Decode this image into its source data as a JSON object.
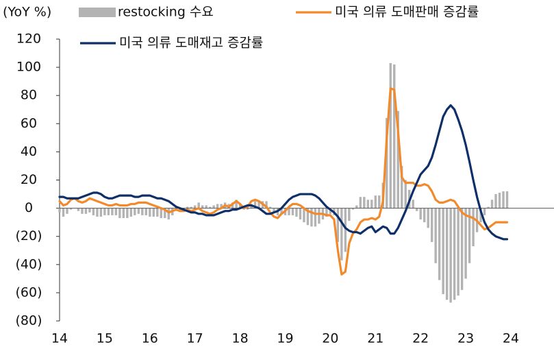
{
  "chart_data": {
    "type": "bar",
    "unit_label": "(YoY %)",
    "categories": [
      "14",
      null,
      null,
      null,
      null,
      null,
      null,
      null,
      null,
      null,
      null,
      null,
      "15",
      null,
      null,
      null,
      null,
      null,
      null,
      null,
      null,
      null,
      null,
      null,
      "16",
      null,
      null,
      null,
      null,
      null,
      null,
      null,
      null,
      null,
      null,
      null,
      "17",
      null,
      null,
      null,
      null,
      null,
      null,
      null,
      null,
      null,
      null,
      null,
      "18",
      null,
      null,
      null,
      null,
      null,
      null,
      null,
      null,
      null,
      null,
      null,
      "19",
      null,
      null,
      null,
      null,
      null,
      null,
      null,
      null,
      null,
      null,
      null,
      "20",
      null,
      null,
      null,
      null,
      null,
      null,
      null,
      null,
      null,
      null,
      null,
      "21",
      null,
      null,
      null,
      null,
      null,
      null,
      null,
      null,
      null,
      null,
      null,
      "22",
      null,
      null,
      null,
      null,
      null,
      null,
      null,
      null,
      null,
      null,
      null,
      "23",
      null,
      null,
      null,
      null,
      null,
      null,
      null,
      null,
      null,
      null,
      null,
      "24"
    ],
    "series": [
      {
        "name": "restocking 수요",
        "type": "bar",
        "color": "#b3b3b3",
        "values": [
          -3,
          -6,
          -4,
          -1,
          0,
          -2,
          -4,
          -4,
          -3,
          -5,
          -6,
          -6,
          -5,
          -5,
          -5,
          -5,
          -7,
          -7,
          -7,
          -6,
          -5,
          -4,
          -5,
          -5,
          -6,
          -6,
          -6,
          -7,
          -7,
          -8,
          -5,
          -2,
          -2,
          -1,
          1,
          1,
          2,
          4,
          2,
          2,
          1,
          2,
          3,
          3,
          4,
          3,
          4,
          6,
          3,
          -1,
          -1,
          3,
          5,
          5,
          5,
          5,
          1,
          -3,
          -5,
          -4,
          -5,
          -5,
          -5,
          -6,
          -8,
          -10,
          -12,
          -13,
          -13,
          -11,
          -8,
          -6,
          -4,
          -5,
          -24,
          -37,
          -31,
          -9,
          -1,
          2,
          8,
          8,
          6,
          6,
          9,
          9,
          18,
          64,
          103,
          102,
          69,
          30,
          20,
          13,
          6,
          -2,
          -8,
          -10,
          -14,
          -24,
          -39,
          -51,
          -61,
          -65,
          -67,
          -65,
          -62,
          -58,
          -50,
          -39,
          -27,
          -17,
          -10,
          -5,
          1,
          6,
          10,
          11,
          12,
          12,
          null
        ]
      },
      {
        "name": "미국 의류 도매판매 증감률",
        "type": "line",
        "color": "#f28a2c",
        "values": [
          5,
          2,
          3,
          6,
          7,
          5,
          4,
          5,
          7,
          6,
          5,
          4,
          3,
          2,
          2,
          3,
          2,
          2,
          2,
          3,
          3,
          4,
          4,
          4,
          3,
          2,
          1,
          0,
          -1,
          -3,
          -2,
          -1,
          -2,
          -2,
          -1,
          -2,
          -1,
          0,
          -2,
          -3,
          -4,
          -3,
          -1,
          0,
          2,
          1,
          3,
          5,
          3,
          0,
          1,
          5,
          6,
          5,
          3,
          1,
          -3,
          -6,
          -7,
          -4,
          -2,
          1,
          3,
          3,
          2,
          0,
          -2,
          -3,
          -4,
          -4,
          -4,
          -5,
          -5,
          -8,
          -30,
          -47,
          -45,
          -25,
          -18,
          -15,
          -10,
          -8,
          -8,
          -7,
          -8,
          -6,
          5,
          50,
          85,
          84,
          55,
          22,
          18,
          18,
          18,
          16,
          16,
          17,
          16,
          12,
          6,
          4,
          4,
          5,
          6,
          5,
          1,
          -3,
          -5,
          -6,
          -7,
          -9,
          -12,
          -15,
          -14,
          -12,
          -10,
          -10,
          -10,
          -10,
          null
        ]
      },
      {
        "name": "미국 의류 도매재고 증감률",
        "type": "line",
        "color": "#0e2f68",
        "values": [
          8,
          8,
          7,
          7,
          7,
          7,
          8,
          9,
          10,
          11,
          11,
          10,
          8,
          7,
          7,
          8,
          9,
          9,
          9,
          9,
          8,
          8,
          9,
          9,
          9,
          8,
          7,
          7,
          6,
          5,
          3,
          1,
          0,
          -1,
          -2,
          -3,
          -3,
          -4,
          -4,
          -5,
          -5,
          -5,
          -4,
          -3,
          -2,
          -2,
          -1,
          -1,
          0,
          1,
          2,
          2,
          1,
          0,
          -2,
          -4,
          -4,
          -3,
          -2,
          0,
          3,
          6,
          8,
          9,
          10,
          10,
          10,
          10,
          9,
          7,
          4,
          1,
          -1,
          -3,
          -6,
          -10,
          -14,
          -16,
          -17,
          -17,
          -18,
          -16,
          -14,
          -13,
          -17,
          -15,
          -13,
          -14,
          -18,
          -18,
          -14,
          -8,
          -2,
          5,
          12,
          18,
          24,
          27,
          30,
          36,
          45,
          55,
          65,
          70,
          73,
          70,
          63,
          55,
          45,
          33,
          20,
          8,
          -2,
          -10,
          -15,
          -18,
          -20,
          -21,
          -22,
          -22,
          null
        ]
      }
    ],
    "ylim": [
      -80,
      120
    ],
    "yticks": [
      {
        "value": -80,
        "label": "(80)"
      },
      {
        "value": -60,
        "label": "(60)"
      },
      {
        "value": -40,
        "label": "(40)"
      },
      {
        "value": -20,
        "label": "(20)"
      },
      0,
      20,
      40,
      60,
      80,
      100,
      120
    ],
    "grid": false
  }
}
